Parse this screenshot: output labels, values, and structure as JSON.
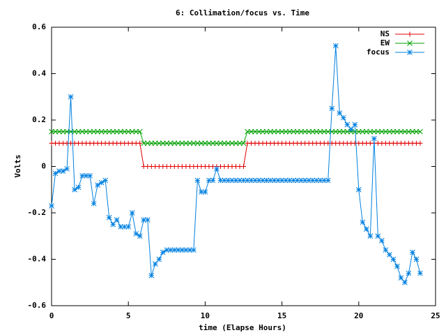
{
  "chart_data": {
    "type": "line",
    "title": "6: Collimation/focus vs. Time",
    "x_label": "time (Elapse Hours)",
    "y_label": "Volts",
    "xlim": [
      0,
      25
    ],
    "xticks": [
      0,
      5,
      10,
      15,
      20,
      25
    ],
    "ylim": [
      -0.6,
      0.6
    ],
    "yticks": [
      -0.6,
      -0.4,
      -0.2,
      0,
      0.2,
      0.4,
      0.6
    ],
    "legend": "top-right",
    "x": [
      0,
      0.25,
      0.5,
      0.75,
      1,
      1.25,
      1.5,
      1.75,
      2,
      2.25,
      2.5,
      2.75,
      3,
      3.25,
      3.5,
      3.75,
      4,
      4.25,
      4.5,
      4.75,
      5,
      5.25,
      5.5,
      5.75,
      6,
      6.25,
      6.5,
      6.75,
      7,
      7.25,
      7.5,
      7.75,
      8,
      8.25,
      8.5,
      8.75,
      9,
      9.25,
      9.5,
      9.75,
      10,
      10.25,
      10.5,
      10.75,
      11,
      11.25,
      11.5,
      11.75,
      12,
      12.25,
      12.5,
      12.75,
      13,
      13.25,
      13.5,
      13.75,
      14,
      14.25,
      14.5,
      14.75,
      15,
      15.25,
      15.5,
      15.75,
      16,
      16.25,
      16.5,
      16.75,
      17,
      17.25,
      17.5,
      17.75,
      18,
      18.25,
      18.5,
      18.75,
      19,
      19.25,
      19.5,
      19.75,
      20,
      20.25,
      20.5,
      20.75,
      21,
      21.25,
      21.5,
      21.75,
      22,
      22.25,
      22.5,
      22.75,
      23,
      23.25,
      23.5,
      23.75,
      24
    ],
    "series": [
      {
        "name": "NS",
        "color": "#e00000",
        "marker": "plus",
        "values": [
          0.1,
          0.1,
          0.1,
          0.1,
          0.1,
          0.1,
          0.1,
          0.1,
          0.1,
          0.1,
          0.1,
          0.1,
          0.1,
          0.1,
          0.1,
          0.1,
          0.1,
          0.1,
          0.1,
          0.1,
          0.1,
          0.1,
          0.1,
          0.1,
          0,
          0,
          0,
          0,
          0,
          0,
          0,
          0,
          0,
          0,
          0,
          0,
          0,
          0,
          0,
          0,
          0,
          0,
          0,
          0,
          0,
          0,
          0,
          0,
          0,
          0,
          0,
          0.1,
          0.1,
          0.1,
          0.1,
          0.1,
          0.1,
          0.1,
          0.1,
          0.1,
          0.1,
          0.1,
          0.1,
          0.1,
          0.1,
          0.1,
          0.1,
          0.1,
          0.1,
          0.1,
          0.1,
          0.1,
          0.1,
          0.1,
          0.1,
          0.1,
          0.1,
          0.1,
          0.1,
          0.1,
          0.1,
          0.1,
          0.1,
          0.1,
          0.1,
          0.1,
          0.1,
          0.1,
          0.1,
          0.1,
          0.1,
          0.1,
          0.1,
          0.1,
          0.1,
          0.1,
          0.1
        ]
      },
      {
        "name": "EW",
        "color": "#00a000",
        "marker": "cross",
        "values": [
          0.15,
          0.15,
          0.15,
          0.15,
          0.15,
          0.15,
          0.15,
          0.15,
          0.15,
          0.15,
          0.15,
          0.15,
          0.15,
          0.15,
          0.15,
          0.15,
          0.15,
          0.15,
          0.15,
          0.15,
          0.15,
          0.15,
          0.15,
          0.15,
          0.1,
          0.1,
          0.1,
          0.1,
          0.1,
          0.1,
          0.1,
          0.1,
          0.1,
          0.1,
          0.1,
          0.1,
          0.1,
          0.1,
          0.1,
          0.1,
          0.1,
          0.1,
          0.1,
          0.1,
          0.1,
          0.1,
          0.1,
          0.1,
          0.1,
          0.1,
          0.1,
          0.15,
          0.15,
          0.15,
          0.15,
          0.15,
          0.15,
          0.15,
          0.15,
          0.15,
          0.15,
          0.15,
          0.15,
          0.15,
          0.15,
          0.15,
          0.15,
          0.15,
          0.15,
          0.15,
          0.15,
          0.15,
          0.15,
          0.15,
          0.15,
          0.15,
          0.15,
          0.15,
          0.15,
          0.15,
          0.15,
          0.15,
          0.15,
          0.15,
          0.15,
          0.15,
          0.15,
          0.15,
          0.15,
          0.15,
          0.15,
          0.15,
          0.15,
          0.15,
          0.15,
          0.15,
          0.15
        ]
      },
      {
        "name": "focus",
        "color": "#0080e0",
        "marker": "star",
        "values": [
          -0.17,
          -0.03,
          -0.02,
          -0.02,
          -0.01,
          0.3,
          -0.1,
          -0.09,
          -0.04,
          -0.04,
          -0.04,
          -0.16,
          -0.08,
          -0.07,
          -0.06,
          -0.22,
          -0.25,
          -0.23,
          -0.26,
          -0.26,
          -0.26,
          -0.2,
          -0.29,
          -0.3,
          -0.23,
          -0.23,
          -0.47,
          -0.42,
          -0.4,
          -0.37,
          -0.36,
          -0.36,
          -0.36,
          -0.36,
          -0.36,
          -0.36,
          -0.36,
          -0.36,
          -0.06,
          -0.11,
          -0.11,
          -0.06,
          -0.06,
          -0.01,
          -0.06,
          -0.06,
          -0.06,
          -0.06,
          -0.06,
          -0.06,
          -0.06,
          -0.06,
          -0.06,
          -0.06,
          -0.06,
          -0.06,
          -0.06,
          -0.06,
          -0.06,
          -0.06,
          -0.06,
          -0.06,
          -0.06,
          -0.06,
          -0.06,
          -0.06,
          -0.06,
          -0.06,
          -0.06,
          -0.06,
          -0.06,
          -0.06,
          -0.06,
          0.25,
          0.52,
          0.23,
          0.21,
          0.18,
          0.16,
          0.18,
          -0.1,
          -0.24,
          -0.27,
          -0.3,
          0.12,
          -0.3,
          -0.32,
          -0.36,
          -0.38,
          -0.4,
          -0.43,
          -0.48,
          -0.5,
          -0.46,
          -0.37,
          -0.4,
          -0.46
        ]
      }
    ]
  }
}
